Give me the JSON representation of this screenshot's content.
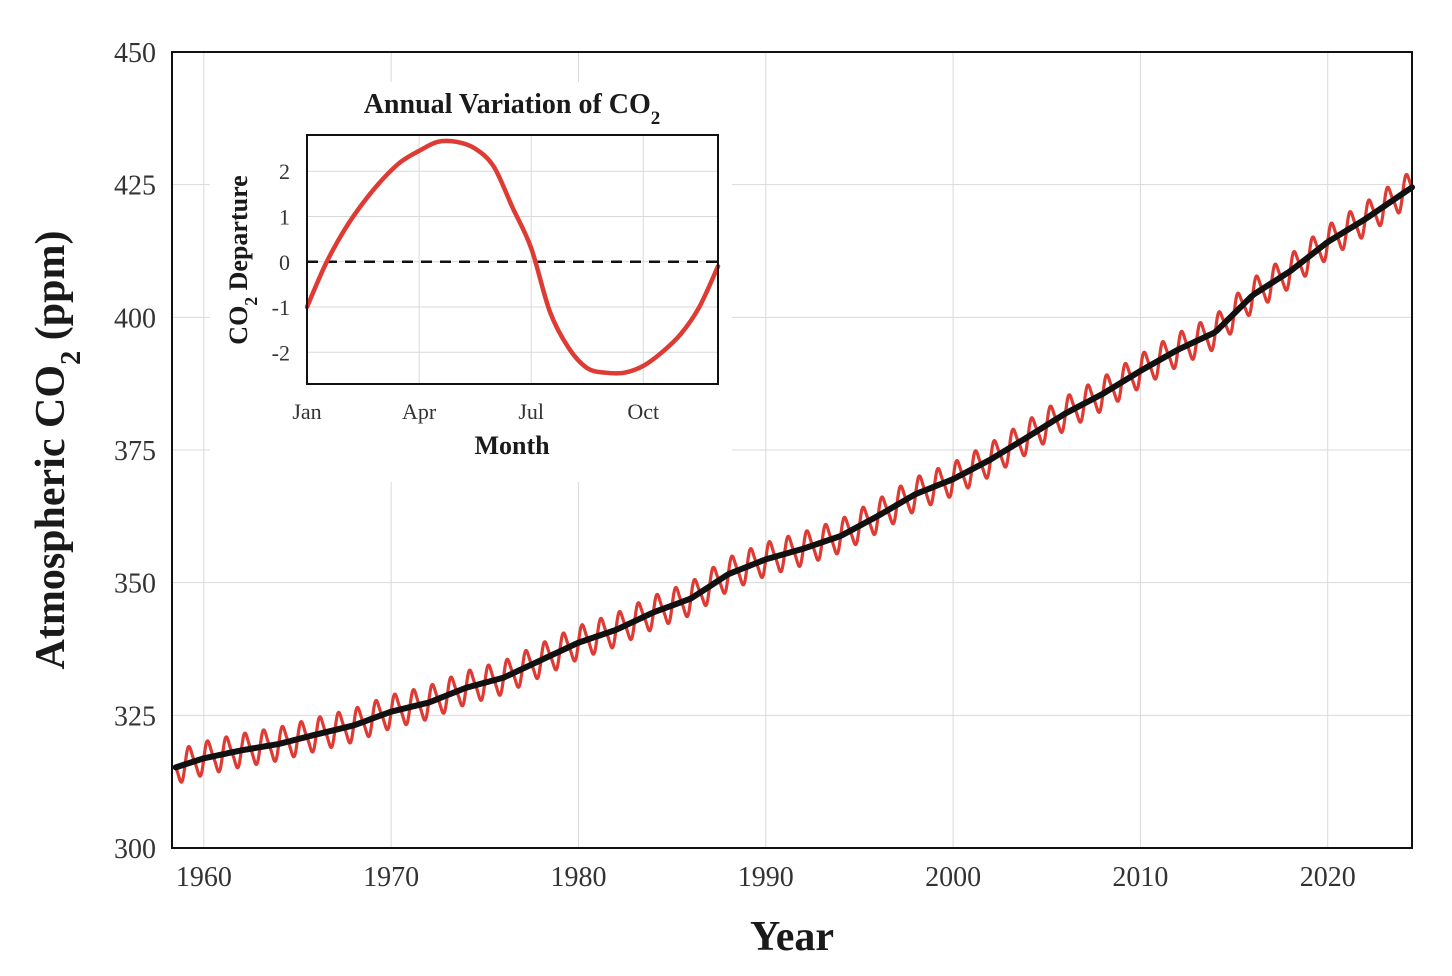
{
  "chart_data": [
    {
      "type": "line",
      "xlabel": "Year",
      "ylabel": "Atmospheric CO",
      "ylabel_subscript": "2",
      "ylabel_suffix": "(ppm)",
      "xlim": [
        1958.3,
        2024.5
      ],
      "ylim": [
        300,
        450
      ],
      "xticks": [
        1960,
        1970,
        1980,
        1990,
        2000,
        2010,
        2020
      ],
      "yticks": [
        300,
        325,
        350,
        375,
        400,
        425,
        450
      ],
      "grid": true,
      "series": [
        {
          "color": "#dd3b33",
          "style": "solid",
          "x": [
            1958.5,
            1960,
            1962,
            1964,
            1966,
            1968,
            1970,
            1972,
            1974,
            1976,
            1978,
            1980,
            1982,
            1984,
            1986,
            1988,
            1990,
            1992,
            1994,
            1996,
            1998,
            2000,
            2002,
            2004,
            2006,
            2008,
            2010,
            2012,
            2014,
            2016,
            2018,
            2020,
            2022,
            2024.5
          ],
          "y": [
            315.2,
            316.9,
            318.4,
            319.6,
            321.4,
            323.1,
            325.7,
            327.4,
            330.2,
            332.1,
            335.4,
            338.7,
            341.1,
            344.4,
            347.0,
            351.6,
            354.4,
            356.4,
            358.8,
            362.6,
            366.7,
            369.5,
            373.2,
            377.5,
            381.9,
            385.6,
            389.9,
            393.9,
            397.2,
            404.2,
            408.7,
            414.2,
            418.5,
            424.5
          ],
          "seasonal_amplitude": 2.9,
          "seasonal_cycle": "annual"
        },
        {
          "color": "#111111",
          "style": "solid",
          "x": [
            1958.5,
            1960,
            1962,
            1964,
            1966,
            1968,
            1970,
            1972,
            1974,
            1976,
            1978,
            1980,
            1982,
            1984,
            1986,
            1988,
            1990,
            1992,
            1994,
            1996,
            1998,
            2000,
            2002,
            2004,
            2006,
            2008,
            2010,
            2012,
            2014,
            2016,
            2018,
            2020,
            2022,
            2024.5
          ],
          "y": [
            315.2,
            316.9,
            318.4,
            319.6,
            321.4,
            323.1,
            325.7,
            327.4,
            330.2,
            332.1,
            335.4,
            338.7,
            341.1,
            344.4,
            347.0,
            351.6,
            354.4,
            356.4,
            358.8,
            362.6,
            366.7,
            369.5,
            373.2,
            377.5,
            381.9,
            385.6,
            389.9,
            393.9,
            397.2,
            404.2,
            408.7,
            414.2,
            418.5,
            424.5
          ]
        }
      ]
    },
    {
      "type": "line",
      "title": "Annual Variation of CO",
      "title_subscript": "2",
      "xlabel": "Month",
      "ylabel": "CO",
      "ylabel_subscript": "2",
      "ylabel_suffix": "Departure",
      "xlim": [
        0,
        11
      ],
      "ylim": [
        -2.7,
        2.8
      ],
      "categories": [
        "Jan",
        "Apr",
        "Jul",
        "Oct"
      ],
      "category_positions": [
        0,
        3,
        6,
        9
      ],
      "yticks": [
        -2,
        -1,
        0,
        1,
        2
      ],
      "ytick_labels": [
        "-2",
        "-1",
        "0",
        "1",
        "2"
      ],
      "grid": true,
      "series": [
        {
          "color": "#dd3b33",
          "style": "solid",
          "x": [
            0,
            0.5,
            1,
            1.5,
            2,
            2.5,
            3,
            3.5,
            4,
            4.5,
            5,
            5.5,
            6,
            6.5,
            7,
            7.5,
            8,
            8.5,
            9,
            9.5,
            10,
            10.5,
            11
          ],
          "y": [
            -1.0,
            -0.05,
            0.7,
            1.3,
            1.8,
            2.2,
            2.45,
            2.65,
            2.65,
            2.5,
            2.1,
            1.2,
            0.3,
            -1.1,
            -1.9,
            -2.35,
            -2.45,
            -2.45,
            -2.3,
            -2.0,
            -1.6,
            -1.0,
            -0.1
          ]
        },
        {
          "color": "#111111",
          "style": "dashed",
          "x": [
            0,
            11
          ],
          "y": [
            0,
            0
          ]
        }
      ]
    }
  ]
}
